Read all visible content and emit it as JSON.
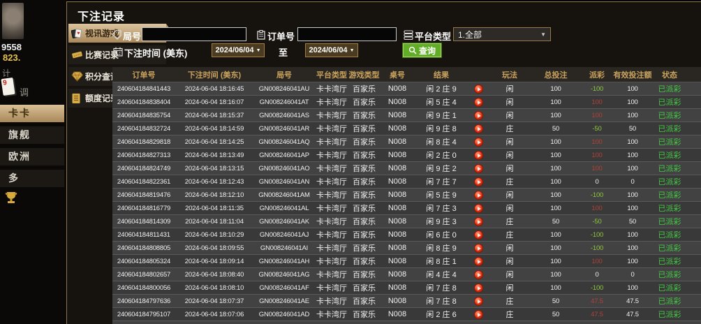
{
  "colors": {
    "accent_tan": "#d8bf97",
    "header_gold": "#c9a25e",
    "win_red": "#b04137",
    "loss_green": "#8dc63f",
    "status_green": "#44cb44",
    "query_green": "#61ad28"
  },
  "background": {
    "stat_primary": "9558",
    "stat_secondary": "823.",
    "misc_char_1": "计",
    "misc_char_2": "调",
    "card_value": "9",
    "nav_items": [
      {
        "label": "卡卡",
        "active": true
      },
      {
        "label": "旗舰",
        "active": false
      },
      {
        "label": "欧洲",
        "active": false
      },
      {
        "label": "多",
        "active": false
      }
    ]
  },
  "modal": {
    "title": "下注记录",
    "sidebar": [
      {
        "label": "视讯游戏",
        "icon": "cards-icon",
        "active": true
      },
      {
        "label": "比赛记录",
        "icon": "ticket-icon",
        "active": false
      },
      {
        "label": "积分查询",
        "icon": "gem-icon",
        "active": false
      },
      {
        "label": "额度记录",
        "icon": "doc-icon",
        "active": false
      }
    ],
    "form": {
      "round_label": "局号",
      "round_value": "",
      "order_label": "订单号",
      "order_value": "",
      "platform_label": "平台类型",
      "platform_value": "1.全部",
      "time_label": "下注时间 (美东)",
      "date_from": "2024/06/04",
      "date_to": "2024/06/04",
      "to_label": "至",
      "query_label": "查询"
    },
    "table": {
      "columns": [
        {
          "key": "order",
          "label": "订单号"
        },
        {
          "key": "time",
          "label": "下注时间 (美东)"
        },
        {
          "key": "round",
          "label": "局号"
        },
        {
          "key": "hall",
          "label": "平台类型"
        },
        {
          "key": "game",
          "label": "游戏类型"
        },
        {
          "key": "table_no",
          "label": "桌号"
        },
        {
          "key": "result",
          "label": "结果"
        },
        {
          "key": "play",
          "label": ""
        },
        {
          "key": "bet_type",
          "label": "玩法"
        },
        {
          "key": "total_bet",
          "label": "总投注"
        },
        {
          "key": "payout",
          "label": "派彩"
        },
        {
          "key": "valid_bet",
          "label": "有效投注额"
        },
        {
          "key": "status",
          "label": "状态"
        },
        {
          "key": "extra",
          "label": ""
        }
      ],
      "rows": [
        {
          "order": "240604184841443",
          "time": "2024-06-04 18:16:45",
          "round": "GN008246041AU",
          "hall": "卡卡湾厅",
          "game": "百家乐",
          "table_no": "N008",
          "result": "闲 2 庄 9",
          "bet_type": "闲",
          "total_bet": "100",
          "payout": "-100",
          "valid_bet": "100",
          "status": "已派彩"
        },
        {
          "order": "240604184838404",
          "time": "2024-06-04 18:16:07",
          "round": "GN008246041AT",
          "hall": "卡卡湾厅",
          "game": "百家乐",
          "table_no": "N008",
          "result": "闲 5 庄 4",
          "bet_type": "闲",
          "total_bet": "100",
          "payout": "100",
          "valid_bet": "100",
          "status": "已派彩"
        },
        {
          "order": "240604184835754",
          "time": "2024-06-04 18:15:37",
          "round": "GN008246041AS",
          "hall": "卡卡湾厅",
          "game": "百家乐",
          "table_no": "N008",
          "result": "闲 9 庄 1",
          "bet_type": "闲",
          "total_bet": "100",
          "payout": "100",
          "valid_bet": "100",
          "status": "已派彩"
        },
        {
          "order": "240604184832724",
          "time": "2024-06-04 18:14:59",
          "round": "GN008246041AR",
          "hall": "卡卡湾厅",
          "game": "百家乐",
          "table_no": "N008",
          "result": "闲 9 庄 8",
          "bet_type": "庄",
          "total_bet": "50",
          "payout": "-50",
          "valid_bet": "50",
          "status": "已派彩"
        },
        {
          "order": "240604184829818",
          "time": "2024-06-04 18:14:25",
          "round": "GN008246041AQ",
          "hall": "卡卡湾厅",
          "game": "百家乐",
          "table_no": "N008",
          "result": "闲 8 庄 4",
          "bet_type": "闲",
          "total_bet": "100",
          "payout": "100",
          "valid_bet": "100",
          "status": "已派彩"
        },
        {
          "order": "240604184827313",
          "time": "2024-06-04 18:13:49",
          "round": "GN008246041AP",
          "hall": "卡卡湾厅",
          "game": "百家乐",
          "table_no": "N008",
          "result": "闲 2 庄 0",
          "bet_type": "闲",
          "total_bet": "100",
          "payout": "100",
          "valid_bet": "100",
          "status": "已派彩"
        },
        {
          "order": "240604184824749",
          "time": "2024-06-04 18:13:15",
          "round": "GN008246041AO",
          "hall": "卡卡湾厅",
          "game": "百家乐",
          "table_no": "N008",
          "result": "闲 9 庄 2",
          "bet_type": "闲",
          "total_bet": "100",
          "payout": "100",
          "valid_bet": "100",
          "status": "已派彩"
        },
        {
          "order": "240604184822361",
          "time": "2024-06-04 18:12:43",
          "round": "GN008246041AN",
          "hall": "卡卡湾厅",
          "game": "百家乐",
          "table_no": "N008",
          "result": "闲 7 庄 7",
          "bet_type": "庄",
          "total_bet": "100",
          "payout": "0",
          "valid_bet": "0",
          "status": "已派彩"
        },
        {
          "order": "240604184819476",
          "time": "2024-06-04 18:12:10",
          "round": "GN008246041AM",
          "hall": "卡卡湾厅",
          "game": "百家乐",
          "table_no": "N008",
          "result": "闲 5 庄 9",
          "bet_type": "闲",
          "total_bet": "100",
          "payout": "-100",
          "valid_bet": "100",
          "status": "已派彩"
        },
        {
          "order": "240604184816779",
          "time": "2024-06-04 18:11:35",
          "round": "GN008246041AL",
          "hall": "卡卡湾厅",
          "game": "百家乐",
          "table_no": "N008",
          "result": "闲 7 庄 3",
          "bet_type": "闲",
          "total_bet": "100",
          "payout": "100",
          "valid_bet": "100",
          "status": "已派彩"
        },
        {
          "order": "240604184814309",
          "time": "2024-06-04 18:11:04",
          "round": "GN008246041AK",
          "hall": "卡卡湾厅",
          "game": "百家乐",
          "table_no": "N008",
          "result": "闲 9 庄 3",
          "bet_type": "庄",
          "total_bet": "50",
          "payout": "-50",
          "valid_bet": "50",
          "status": "已派彩"
        },
        {
          "order": "240604184811431",
          "time": "2024-06-04 18:10:29",
          "round": "GN008246041AJ",
          "hall": "卡卡湾厅",
          "game": "百家乐",
          "table_no": "N008",
          "result": "闲 6 庄 0",
          "bet_type": "庄",
          "total_bet": "100",
          "payout": "-100",
          "valid_bet": "100",
          "status": "已派彩"
        },
        {
          "order": "240604184808805",
          "time": "2024-06-04 18:09:55",
          "round": "GN008246041AI",
          "hall": "卡卡湾厅",
          "game": "百家乐",
          "table_no": "N008",
          "result": "闲 8 庄 9",
          "bet_type": "闲",
          "total_bet": "100",
          "payout": "-100",
          "valid_bet": "100",
          "status": "已派彩"
        },
        {
          "order": "240604184805324",
          "time": "2024-06-04 18:09:14",
          "round": "GN008246041AH",
          "hall": "卡卡湾厅",
          "game": "百家乐",
          "table_no": "N008",
          "result": "闲 8 庄 1",
          "bet_type": "闲",
          "total_bet": "100",
          "payout": "100",
          "valid_bet": "100",
          "status": "已派彩"
        },
        {
          "order": "240604184802657",
          "time": "2024-06-04 18:08:40",
          "round": "GN008246041AG",
          "hall": "卡卡湾厅",
          "game": "百家乐",
          "table_no": "N008",
          "result": "闲 4 庄 4",
          "bet_type": "闲",
          "total_bet": "100",
          "payout": "0",
          "valid_bet": "0",
          "status": "已派彩"
        },
        {
          "order": "240604184800056",
          "time": "2024-06-04 18:08:10",
          "round": "GN008246041AF",
          "hall": "卡卡湾厅",
          "game": "百家乐",
          "table_no": "N008",
          "result": "闲 7 庄 8",
          "bet_type": "闲",
          "total_bet": "100",
          "payout": "-100",
          "valid_bet": "100",
          "status": "已派彩"
        },
        {
          "order": "240604184797636",
          "time": "2024-06-04 18:07:37",
          "round": "GN008246041AE",
          "hall": "卡卡湾厅",
          "game": "百家乐",
          "table_no": "N008",
          "result": "闲 7 庄 8",
          "bet_type": "庄",
          "total_bet": "50",
          "payout": "47.5",
          "valid_bet": "47.5",
          "status": "已派彩"
        },
        {
          "order": "240604184795107",
          "time": "2024-06-04 18:07:06",
          "round": "GN008246041AD",
          "hall": "卡卡湾厅",
          "game": "百家乐",
          "table_no": "N008",
          "result": "闲 2 庄 6",
          "bet_type": "庄",
          "total_bet": "50",
          "payout": "47.5",
          "valid_bet": "47.5",
          "status": "已派彩"
        },
        {
          "order": "",
          "time": "",
          "round": "",
          "hall": "",
          "game": "",
          "table_no": "",
          "result": "",
          "bet_type": "",
          "total_bet": "",
          "payout": "",
          "valid_bet": "",
          "status": "",
          "partial": true
        }
      ]
    }
  }
}
